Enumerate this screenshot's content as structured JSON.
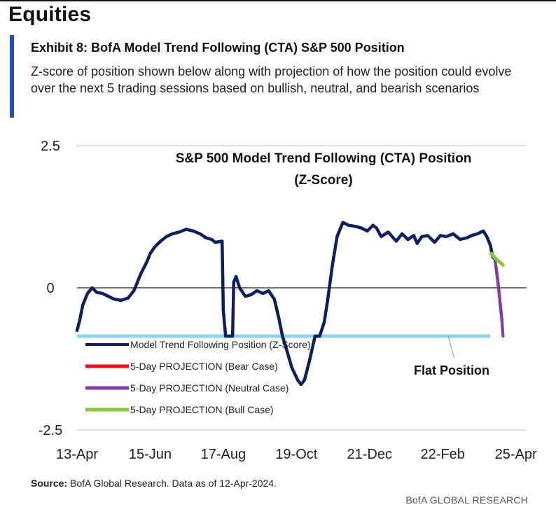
{
  "header": {
    "section_title": "Equities",
    "exhibit_title": "Exhibit 8: BofA Model Trend Following (CTA) S&P 500 Position",
    "subtitle": "Z-score of position shown below along with projection of how the position could evolve over the next 5 trading sessions based on bullish, neutral, and bearish scenarios"
  },
  "footer": {
    "source_label": "Source:",
    "source_text": " BofA Global Research. Data as of 12-Apr-2024.",
    "brand": "BofA GLOBAL RESEARCH"
  },
  "colors": {
    "main_series": "#0d1f5c",
    "bear": "#e8141c",
    "neutral": "#7b3fa6",
    "bull": "#8cc63f",
    "flat": "#8fd3f0",
    "zero_line": "#444444",
    "gridline": "#bfbfbf"
  },
  "chart_data": {
    "type": "line",
    "title_line1": "S&P 500 Model Trend Following (CTA) Position",
    "title_line2": "(Z-Score)",
    "ylim": [
      -2.5,
      2.5
    ],
    "yticks": [
      {
        "value": 2.5,
        "label": "2.5"
      },
      {
        "value": 0,
        "label": "0"
      },
      {
        "value": -2.5,
        "label": "-2.5"
      }
    ],
    "xlim": [
      0,
      377
    ],
    "xticks": [
      {
        "day": 0,
        "label": "13-Apr"
      },
      {
        "day": 63,
        "label": "15-Jun"
      },
      {
        "day": 126,
        "label": "17-Aug"
      },
      {
        "day": 189,
        "label": "19-Oct"
      },
      {
        "day": 252,
        "label": "21-Dec"
      },
      {
        "day": 315,
        "label": "22-Feb"
      },
      {
        "day": 378,
        "label": "25-Apr"
      }
    ],
    "flat_position": -0.85,
    "flat_label": "Flat Position",
    "series": [
      {
        "name": "Model Trend Following Position (Z-Score)",
        "color_key": "main_series",
        "x": [
          0,
          2,
          5,
          9,
          13,
          17,
          22,
          27,
          32,
          38,
          44,
          49,
          55,
          60,
          63,
          67,
          72,
          77,
          82,
          88,
          94,
          100,
          106,
          111,
          116,
          119,
          125,
          126,
          128,
          130,
          134,
          135,
          137,
          140,
          145,
          150,
          155,
          160,
          165,
          170,
          174,
          177,
          180,
          185,
          190,
          193,
          196,
          200,
          205,
          209,
          213,
          216,
          220,
          224,
          229,
          234,
          240,
          245,
          250,
          255,
          258,
          262,
          268,
          275,
          280,
          285,
          290,
          293,
          297,
          302,
          308,
          313,
          318,
          324,
          330,
          336,
          340,
          345,
          350,
          353,
          356,
          358,
          360
        ],
        "y": [
          -0.75,
          -0.6,
          -0.3,
          -0.1,
          0,
          -0.08,
          -0.1,
          -0.15,
          -0.2,
          -0.22,
          -0.18,
          -0.05,
          0.25,
          0.45,
          0.6,
          0.72,
          0.82,
          0.9,
          0.95,
          0.98,
          1.03,
          1.0,
          0.95,
          0.88,
          0.85,
          0.8,
          0.82,
          -0.4,
          -0.85,
          -0.85,
          -0.85,
          0.1,
          0.2,
          0.0,
          -0.15,
          -0.12,
          -0.05,
          -0.1,
          -0.05,
          -0.2,
          -0.55,
          -0.85,
          -1.05,
          -1.4,
          -1.62,
          -1.7,
          -1.62,
          -1.3,
          -0.85,
          -0.85,
          -0.6,
          -0.2,
          0.4,
          0.9,
          1.15,
          1.1,
          1.08,
          1.05,
          1.0,
          1.1,
          1.05,
          0.9,
          0.98,
          0.82,
          0.95,
          0.85,
          0.92,
          0.78,
          0.9,
          0.92,
          0.8,
          0.92,
          0.9,
          0.95,
          0.85,
          0.88,
          0.92,
          0.95,
          1.0,
          0.9,
          0.75,
          0.55,
          0.5
        ]
      },
      {
        "name": "5-Day PROJECTION (Bear Case)",
        "color_key": "bear",
        "x": [
          360,
          361.5,
          363,
          364.5,
          366,
          367
        ],
        "y": [
          0.5,
          0.25,
          0.0,
          -0.3,
          -0.6,
          -0.85
        ]
      },
      {
        "name": "5-Day PROJECTION (Neutral Case)",
        "color_key": "neutral",
        "x": [
          360,
          361.5,
          363,
          364.5,
          366,
          367
        ],
        "y": [
          0.5,
          0.3,
          0.05,
          -0.25,
          -0.55,
          -0.85
        ]
      },
      {
        "name": "5-Day PROJECTION (Bull Case)",
        "color_key": "bull",
        "x": [
          357,
          360,
          363,
          366,
          367
        ],
        "y": [
          0.6,
          0.53,
          0.47,
          0.42,
          0.4
        ]
      }
    ],
    "legend": [
      {
        "label": "Model Trend Following Position (Z-Score)",
        "color_key": "main_series"
      },
      {
        "label": "5-Day PROJECTION (Bear Case)",
        "color_key": "bear"
      },
      {
        "label": "5-Day PROJECTION (Neutral Case)",
        "color_key": "neutral"
      },
      {
        "label": "5-Day PROJECTION (Bull Case)",
        "color_key": "bull"
      }
    ],
    "legend_position": "bottom-left, inside plot"
  }
}
